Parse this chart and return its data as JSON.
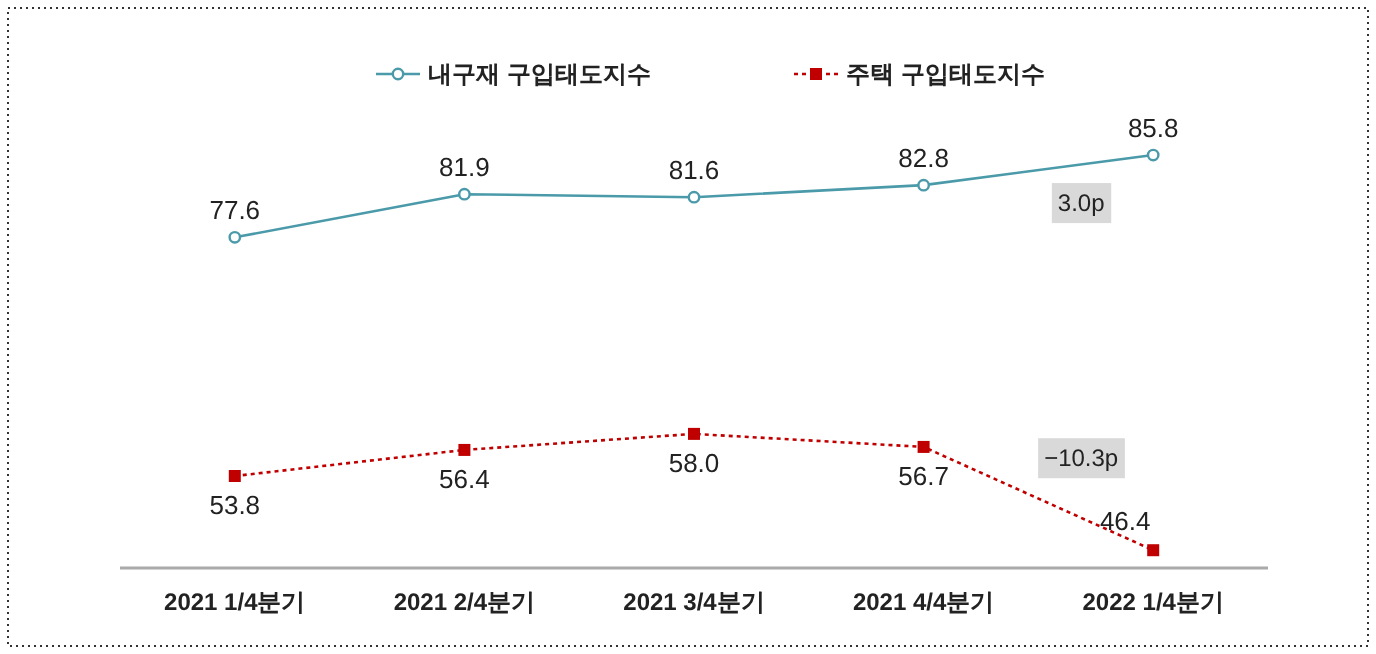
{
  "chart_data": {
    "type": "line",
    "categories": [
      "2021 1/4분기",
      "2021 2/4분기",
      "2021 3/4분기",
      "2021 4/4분기",
      "2022 1/4분기"
    ],
    "series": [
      {
        "name": "내구재 구입태도지수",
        "color": "#4a9aaa",
        "values": [
          77.6,
          81.9,
          81.6,
          82.8,
          85.8
        ],
        "value_labels": [
          "77.6",
          "81.9",
          "81.6",
          "82.8",
          "85.8"
        ],
        "marker": "circle",
        "line_style": "solid"
      },
      {
        "name": "주택 구입태도지수",
        "color": "#c00000",
        "values": [
          53.8,
          56.4,
          58.0,
          56.7,
          46.4
        ],
        "value_labels": [
          "53.8",
          "56.4",
          "58.0",
          "56.7",
          "46.4"
        ],
        "marker": "square",
        "line_style": "dotted"
      }
    ],
    "annotations": [
      "3.0p",
      "−10.3p"
    ],
    "legend": "top",
    "grid": false
  }
}
